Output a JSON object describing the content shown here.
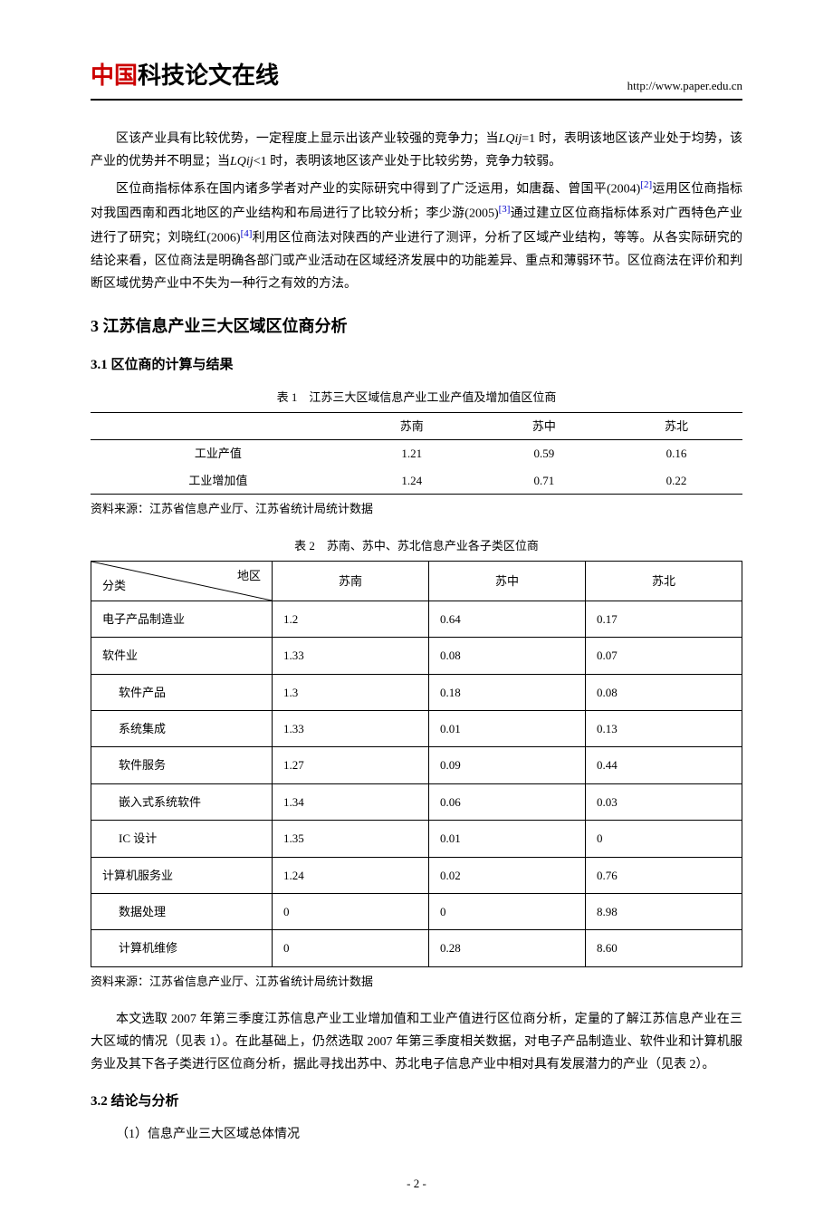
{
  "header": {
    "logo_red": "中国",
    "logo_black": "科技论文在线",
    "url": "http://www.paper.edu.cn"
  },
  "para1_a": "区该产业具有比较优势，一定程度上显示出该产业较强的竞争力；当",
  "formula1": "LQij",
  "para1_b": "=1 时，表明该地区该产业处于均势，该产业的优势并不明显；当",
  "formula2": "LQij",
  "para1_c": "<1 时，表明该地区该产业处于比较劣势，竞争力较弱。",
  "para2_a": "区位商指标体系在国内诸多学者对产业的实际研究中得到了广泛运用，如唐磊、曾国平(2004)",
  "ref2": "[2]",
  "para2_b": "运用区位商指标对我国西南和西北地区的产业结构和布局进行了比较分析；李少游(2005)",
  "ref3": "[3]",
  "para2_c": "通过建立区位商指标体系对广西特色产业进行了研究；刘晓红(2006)",
  "ref4": "[4]",
  "para2_d": "利用区位商法对陕西的产业进行了测评，分析了区域产业结构，等等。从各实际研究的结论来看，区位商法是明确各部门或产业活动在区域经济发展中的功能差异、重点和薄弱环节。区位商法在评价和判断区域优势产业中不失为一种行之有效的方法。",
  "h2": "3 江苏信息产业三大区域区位商分析",
  "h3_1": "3.1 区位商的计算与结果",
  "table1": {
    "title": "表 1　江苏三大区域信息产业工业产值及增加值区位商",
    "columns": [
      "",
      "苏南",
      "苏中",
      "苏北"
    ],
    "rows": [
      [
        "工业产值",
        "1.21",
        "0.59",
        "0.16"
      ],
      [
        "工业增加值",
        "1.24",
        "0.71",
        "0.22"
      ]
    ],
    "source": "资料来源：江苏省信息产业厅、江苏省统计局统计数据"
  },
  "table2": {
    "title": "表 2　苏南、苏中、苏北信息产业各子类区位商",
    "diag_top": "地区",
    "diag_bot": "分类",
    "columns": [
      "苏南",
      "苏中",
      "苏北"
    ],
    "rows": [
      {
        "label": "电子产品制造业",
        "v": [
          "1.2",
          "0.64",
          "0.17"
        ],
        "indent": false
      },
      {
        "label": "软件业",
        "v": [
          "1.33",
          "0.08",
          "0.07"
        ],
        "indent": false
      },
      {
        "label": "软件产品",
        "v": [
          "1.3",
          "0.18",
          "0.08"
        ],
        "indent": true
      },
      {
        "label": "系统集成",
        "v": [
          "1.33",
          "0.01",
          "0.13"
        ],
        "indent": true
      },
      {
        "label": "软件服务",
        "v": [
          "1.27",
          "0.09",
          "0.44"
        ],
        "indent": true
      },
      {
        "label": "嵌入式系统软件",
        "v": [
          "1.34",
          "0.06",
          "0.03"
        ],
        "indent": true
      },
      {
        "label": "IC 设计",
        "v": [
          "1.35",
          "0.01",
          "0"
        ],
        "indent": true
      },
      {
        "label": "计算机服务业",
        "v": [
          "1.24",
          "0.02",
          "0.76"
        ],
        "indent": false
      },
      {
        "label": "数据处理",
        "v": [
          "0",
          "0",
          "8.98"
        ],
        "indent": true
      },
      {
        "label": "计算机维修",
        "v": [
          "0",
          "0.28",
          "8.60"
        ],
        "indent": true
      }
    ],
    "source": "资料来源：江苏省信息产业厅、江苏省统计局统计数据"
  },
  "para3": "本文选取 2007 年第三季度江苏信息产业工业增加值和工业产值进行区位商分析，定量的了解江苏信息产业在三大区域的情况（见表 1）。在此基础上，仍然选取 2007 年第三季度相关数据，对电子产品制造业、软件业和计算机服务业及其下各子类进行区位商分析，据此寻找出苏中、苏北电子信息产业中相对具有发展潜力的产业（见表 2）。",
  "h3_2": "3.2 结论与分析",
  "para4": "（1）信息产业三大区域总体情况",
  "page_num": "- 2 -"
}
